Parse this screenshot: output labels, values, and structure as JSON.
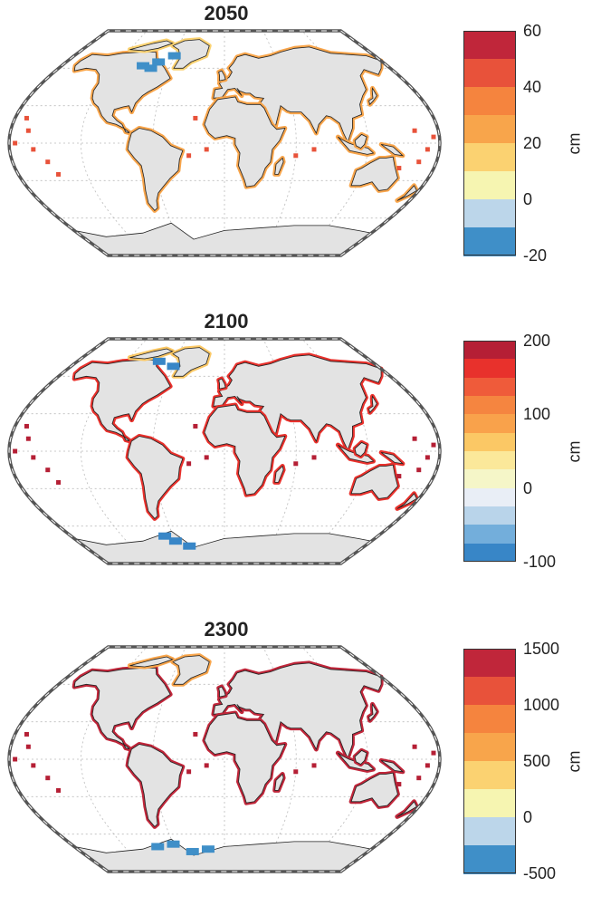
{
  "panels": [
    {
      "title": "2050",
      "unit": "cm",
      "ticks": [
        "60",
        "40",
        "20",
        "0",
        "-20"
      ],
      "colors": [
        "#c0263a",
        "#e8523a",
        "#f5843e",
        "#f8a54b",
        "#fbd271",
        "#f6f5b1",
        "#bcd6ea",
        "#3f8fc8"
      ]
    },
    {
      "title": "2100",
      "unit": "cm",
      "ticks": [
        "200",
        "100",
        "0",
        "-100"
      ],
      "colors": [
        "#b51f35",
        "#e8312c",
        "#ef5b3a",
        "#f58540",
        "#f9a24b",
        "#fbc865",
        "#fbe89a",
        "#f5f6c8",
        "#e9eef6",
        "#b9d4ea",
        "#73aedb",
        "#3886c7"
      ]
    },
    {
      "title": "2300",
      "unit": "cm",
      "ticks": [
        "1500",
        "1000",
        "500",
        "0",
        "-500"
      ],
      "colors": [
        "#c0263a",
        "#e8523a",
        "#f5843e",
        "#f8a54b",
        "#fbd271",
        "#f6f5b1",
        "#bcd6ea",
        "#3f8fc8"
      ]
    }
  ]
}
